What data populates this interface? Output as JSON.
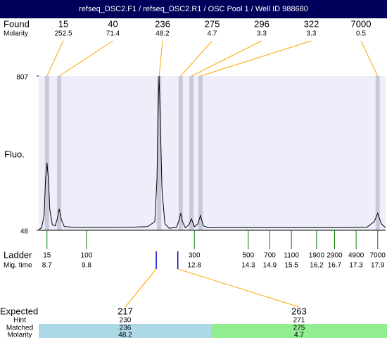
{
  "chart_data": {
    "type": "line",
    "title": "refseq_DSC2.F1 / refseq_DSC2.R1 / OSC Pool 1 / Well ID 988680",
    "ylabel": "Fluo.",
    "color": "#000000",
    "ylim": [
      48,
      807
    ],
    "yticks": [
      48,
      807
    ],
    "xlim": [
      8.47,
      18.12
    ],
    "x": [
      8.47,
      8.55,
      8.62,
      8.66,
      8.7,
      8.74,
      8.78,
      8.85,
      8.93,
      8.98,
      9.04,
      9.1,
      9.18,
      9.5,
      10.0,
      10.5,
      11.0,
      11.5,
      11.7,
      11.76,
      11.8,
      11.82,
      11.85,
      11.9,
      11.98,
      12.1,
      12.3,
      12.38,
      12.42,
      12.47,
      12.55,
      12.65,
      12.72,
      12.8,
      12.9,
      12.97,
      13.05,
      13.2,
      13.5,
      14.0,
      15.0,
      16.0,
      17.0,
      17.6,
      17.8,
      17.9,
      18.0,
      18.12
    ],
    "values": [
      52,
      60,
      120,
      300,
      380,
      300,
      150,
      75,
      70,
      100,
      153,
      100,
      66,
      62,
      62,
      62,
      63,
      66,
      90,
      300,
      700,
      807,
      600,
      250,
      80,
      58,
      62,
      100,
      132,
      90,
      60,
      75,
      104,
      65,
      80,
      121,
      70,
      60,
      61,
      61,
      61,
      61,
      61,
      63,
      90,
      132,
      80,
      60
    ],
    "found": {
      "label": "Found",
      "molarity_label": "Molarity",
      "band_color": "#c8c8da",
      "line_color": "#ffa500",
      "peaks": [
        {
          "size": 15,
          "molarity": 252.5,
          "time": 8.7
        },
        {
          "size": 40,
          "molarity": 71.4,
          "time": 9.04
        },
        {
          "size": 236,
          "molarity": 48.2,
          "time": 11.82
        },
        {
          "size": 275,
          "molarity": 4.7,
          "time": 12.42
        },
        {
          "size": 296,
          "molarity": 3.3,
          "time": 12.72
        },
        {
          "size": 322,
          "molarity": 3.3,
          "time": 12.97
        },
        {
          "size": 7000,
          "molarity": 0.5,
          "time": 17.9
        }
      ]
    },
    "ladder": {
      "label": "Ladder",
      "time_label": "Mig. time",
      "color": "#008000",
      "peaks": [
        {
          "size": 15,
          "time": 8.7
        },
        {
          "size": 100,
          "time": 9.8
        },
        {
          "size": 300,
          "time": 12.8
        },
        {
          "size": 500,
          "time": 14.3
        },
        {
          "size": 700,
          "time": 14.9
        },
        {
          "size": 1100,
          "time": 15.5
        },
        {
          "size": 1900,
          "time": 16.2
        },
        {
          "size": 2900,
          "time": 16.7
        },
        {
          "size": 4900,
          "time": 17.3
        },
        {
          "size": 7000,
          "time": 17.9
        }
      ]
    },
    "expected": {
      "label": "Expected",
      "hint_label": "Hint",
      "matched_label": "Matched",
      "molarity_label": "Molarity",
      "marker_color": "#0000cc",
      "items": [
        {
          "size": 217,
          "hint": 230,
          "matched": 236,
          "molarity": 48.2,
          "time": 11.74,
          "color": "#add8e6"
        },
        {
          "size": 263,
          "hint": 271,
          "matched": 275,
          "molarity": 4.7,
          "time": 12.34,
          "color": "#90ee90"
        }
      ]
    }
  }
}
